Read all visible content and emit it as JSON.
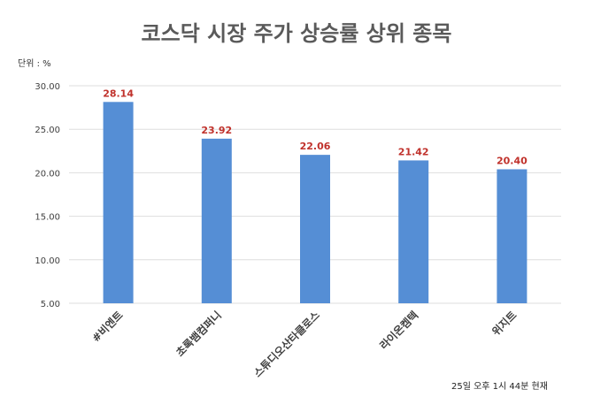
{
  "chart_data": {
    "type": "bar",
    "title": "코스닥 시장 주가 상승률 상위 종목",
    "unit_label": "단위 : %",
    "footnote": "25일 오후 1시 44분 현재",
    "categories": [
      "#비엔트",
      "초록뱀컴퍼니",
      "스튜디오산타클로스",
      "라이온켐텍",
      "위지트"
    ],
    "values": [
      28.14,
      23.92,
      22.06,
      21.42,
      20.4
    ],
    "value_labels": [
      "28.14",
      "23.92",
      "22.06",
      "21.42",
      "20.40"
    ],
    "yticks": [
      "5.00",
      "10.00",
      "15.00",
      "20.00",
      "25.00",
      "30.00"
    ],
    "ylim": [
      5,
      30
    ],
    "grid": true,
    "bar_color": "#558ed5",
    "label_color": "#c0312b"
  }
}
